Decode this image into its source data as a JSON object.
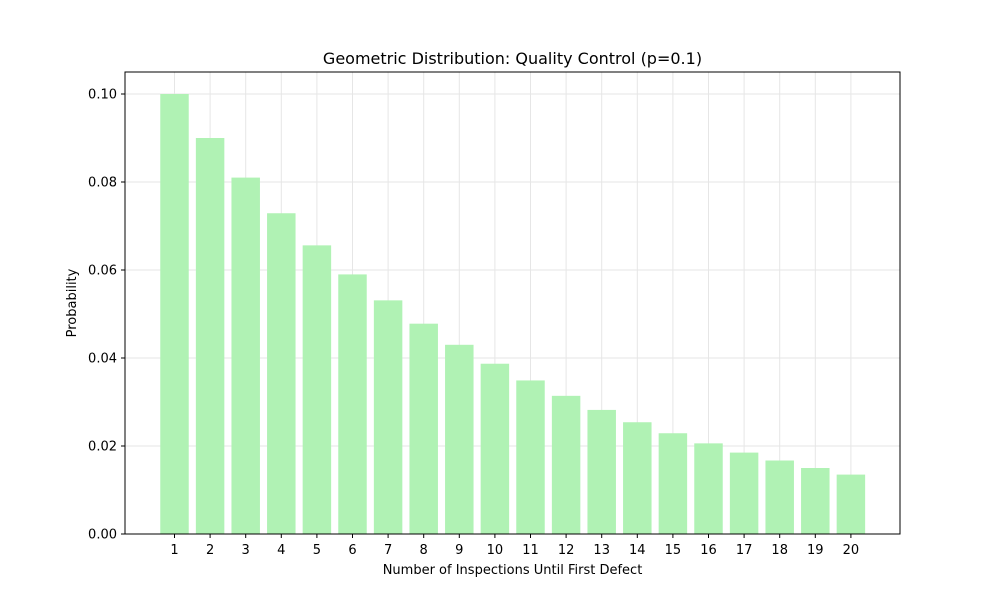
{
  "chart_data": {
    "type": "bar",
    "title": "Geometric Distribution: Quality Control (p=0.1)",
    "xlabel": "Number of Inspections Until First Defect",
    "ylabel": "Probability",
    "categories": [
      "1",
      "2",
      "3",
      "4",
      "5",
      "6",
      "7",
      "8",
      "9",
      "10",
      "11",
      "12",
      "13",
      "14",
      "15",
      "16",
      "17",
      "18",
      "19",
      "20"
    ],
    "values": [
      0.1,
      0.09,
      0.081,
      0.0729,
      0.0656,
      0.059,
      0.0531,
      0.0478,
      0.043,
      0.0387,
      0.0349,
      0.0314,
      0.0282,
      0.0254,
      0.0229,
      0.0206,
      0.0185,
      0.0167,
      0.015,
      0.0135
    ],
    "ylim": [
      0,
      0.105
    ],
    "yticks": [
      0.0,
      0.02,
      0.04,
      0.06,
      0.08,
      0.1
    ],
    "ytick_labels": [
      "0.00",
      "0.02",
      "0.04",
      "0.06",
      "0.08",
      "0.10"
    ],
    "grid": true,
    "bar_color": "#b0f2b4",
    "grid_color": "#e6e6e6"
  }
}
